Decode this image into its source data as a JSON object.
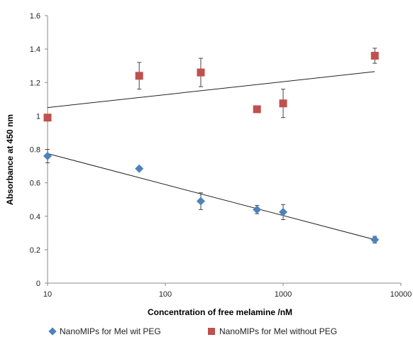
{
  "chart_data": {
    "type": "scatter",
    "title": "",
    "xlabel": "Concentration  of free melamine /nM",
    "ylabel": "Absorbance at 450 nm",
    "xscale": "log",
    "xlim": [
      10,
      10000
    ],
    "ylim": [
      0,
      1.6
    ],
    "xticks": [
      10,
      100,
      1000,
      10000
    ],
    "xtick_labels": [
      "10",
      "100",
      "1000",
      "10000"
    ],
    "yticks": [
      0,
      0.2,
      0.4,
      0.6,
      0.8,
      1,
      1.2,
      1.4,
      1.6
    ],
    "ytick_labels": [
      "0",
      "0.2",
      "0.4",
      "0.6",
      "0.8",
      "1",
      "1.2",
      "1.4",
      "1.6"
    ],
    "grid": false,
    "legend_position": "bottom",
    "series": [
      {
        "name": "NanoMIPs for Mel wit PEG",
        "marker": "diamond",
        "color": "#4f81bd",
        "points": [
          {
            "x": 10,
            "y": 0.76,
            "err": 0.04
          },
          {
            "x": 60,
            "y": 0.685,
            "err": 0
          },
          {
            "x": 200,
            "y": 0.49,
            "err": 0.05
          },
          {
            "x": 600,
            "y": 0.44,
            "err": 0.025
          },
          {
            "x": 1000,
            "y": 0.425,
            "err": 0.045
          },
          {
            "x": 6000,
            "y": 0.26,
            "err": 0.02
          }
        ],
        "trendline": {
          "x": [
            10,
            6000
          ],
          "y": [
            0.775,
            0.26
          ]
        }
      },
      {
        "name": "NanoMIPs for Mel without PEG",
        "marker": "square",
        "color": "#c0504d",
        "points": [
          {
            "x": 10,
            "y": 0.99,
            "err": 0
          },
          {
            "x": 60,
            "y": 1.24,
            "err": 0.08
          },
          {
            "x": 200,
            "y": 1.26,
            "err": 0.085
          },
          {
            "x": 600,
            "y": 1.04,
            "err": 0
          },
          {
            "x": 1000,
            "y": 1.075,
            "err": 0.085
          },
          {
            "x": 6000,
            "y": 1.36,
            "err": 0.045
          }
        ],
        "trendline": {
          "x": [
            10,
            6000
          ],
          "y": [
            1.05,
            1.265
          ]
        }
      }
    ]
  }
}
